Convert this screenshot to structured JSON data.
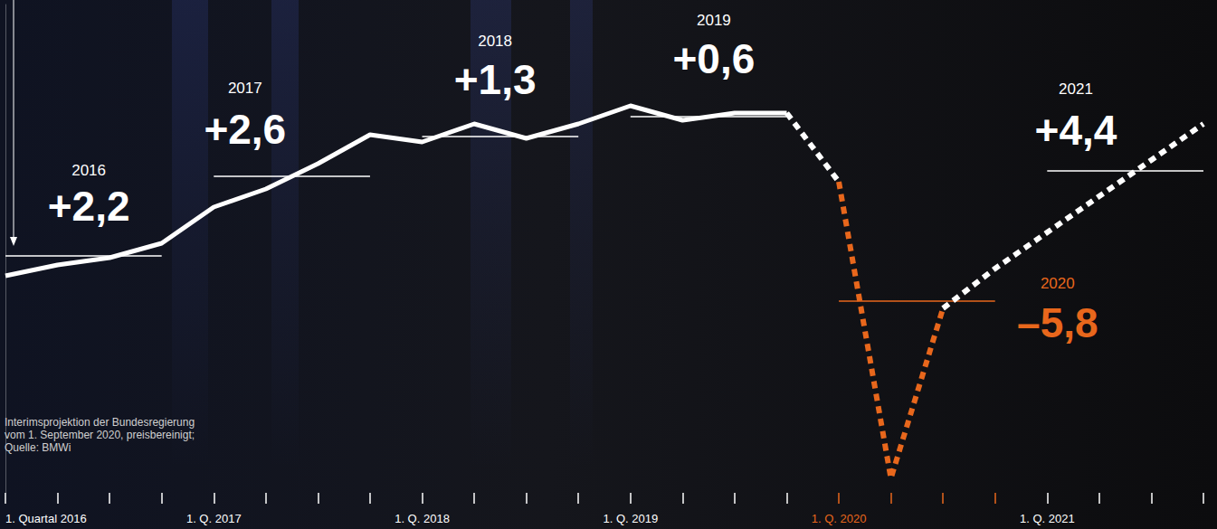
{
  "chart_data": {
    "type": "line",
    "categories": [
      "1. Quartal 2016",
      null,
      null,
      null,
      "1. Q. 2017",
      null,
      null,
      null,
      "1. Q. 2018",
      null,
      null,
      null,
      "1. Q. 2019",
      null,
      null,
      null,
      "1. Q. 2020",
      null,
      null,
      null,
      "1. Q. 2021",
      null,
      null,
      null
    ],
    "ylim": [
      94,
      107.5
    ],
    "tick_labels": "x",
    "grid": false,
    "series": [
      {
        "color": "#ffffff",
        "line_style": "solid",
        "values": [
          100.0,
          100.3,
          100.5,
          100.9,
          101.9,
          102.4,
          103.1,
          103.9,
          103.7,
          104.2,
          103.8,
          104.2,
          104.7,
          104.3,
          104.5,
          104.5,
          null,
          null,
          null,
          null,
          null,
          null,
          null,
          null
        ]
      },
      {
        "color": "#ffffff",
        "line_style": "dotted",
        "values": [
          null,
          null,
          null,
          null,
          null,
          null,
          null,
          null,
          null,
          null,
          null,
          null,
          null,
          null,
          null,
          104.5,
          102.6,
          null,
          null,
          null,
          null,
          null,
          null,
          null
        ]
      },
      {
        "color": "#e8671c",
        "line_style": "dotted",
        "values": [
          null,
          null,
          null,
          null,
          null,
          null,
          null,
          null,
          null,
          null,
          null,
          null,
          null,
          null,
          null,
          null,
          102.6,
          94.4,
          99.1,
          null,
          null,
          null,
          null,
          null
        ]
      },
      {
        "color": "#ffffff",
        "line_style": "dotted",
        "values": [
          null,
          null,
          null,
          null,
          null,
          null,
          null,
          null,
          null,
          null,
          null,
          null,
          null,
          null,
          null,
          null,
          null,
          null,
          99.1,
          100.2,
          101.2,
          102.2,
          103.2,
          104.2
        ]
      }
    ],
    "annual": [
      {
        "year": "2016",
        "growth": 2.2,
        "growth_label": "+2,2",
        "average": 100.55,
        "color": "#ffffff"
      },
      {
        "year": "2017",
        "growth": 2.6,
        "growth_label": "+2,6",
        "average": 102.75,
        "color": "#ffffff"
      },
      {
        "year": "2018",
        "growth": 1.3,
        "growth_label": "+1,3",
        "average": 103.85,
        "color": "#ffffff"
      },
      {
        "year": "2019",
        "growth": 0.6,
        "growth_label": "+0,6",
        "average": 104.4,
        "color": "#ffffff"
      },
      {
        "year": "2020",
        "growth": -5.8,
        "growth_label": "–5,8",
        "average": 99.3,
        "color": "#e8671c"
      },
      {
        "year": "2021",
        "growth": 4.4,
        "growth_label": "+4,4",
        "average": 102.9,
        "color": "#ffffff"
      }
    ],
    "note": [
      "Interimsprojektion der Bundesregierung",
      "vom 1. September 2020, preisbereinigt;",
      "Quelle: BMWi"
    ]
  }
}
